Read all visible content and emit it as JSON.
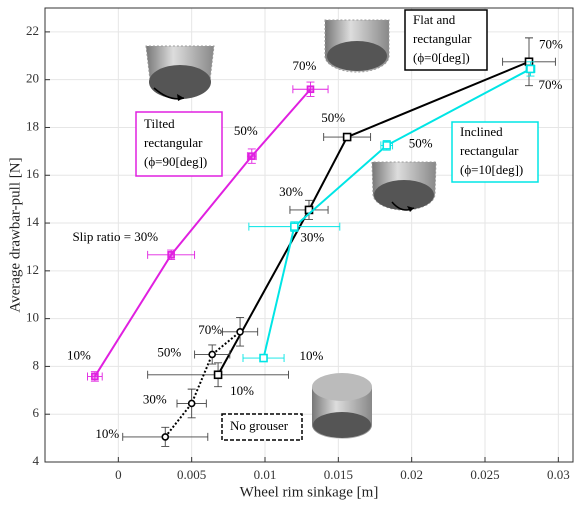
{
  "chart_data": {
    "type": "line",
    "x_label": "Wheel rim sinkage [m]",
    "y_label": "Average drawbar-pull [N]",
    "xlim": [
      -0.005,
      0.031
    ],
    "ylim": [
      4,
      23
    ],
    "xticks": [
      0,
      0.005,
      0.01,
      0.015,
      0.02,
      0.025,
      0.03
    ],
    "yticks": [
      4,
      6,
      8,
      10,
      12,
      14,
      16,
      18,
      20,
      22
    ],
    "grid": true,
    "series": [
      {
        "label_lines": [
          "Tilted",
          "rectangular",
          "(ϕ=90[deg])"
        ],
        "color": "#e020e0",
        "line_style": "solid",
        "marker": "square-filled",
        "x": [
          -0.0016,
          0.0036,
          0.0091,
          0.0131
        ],
        "values": [
          7.58,
          12.67,
          16.8,
          19.6
        ],
        "xerr": [
          0.0005,
          0.0016,
          0.0003,
          0.0012
        ],
        "yerr": [
          0.2,
          0.2,
          0.3,
          0.3
        ],
        "point_labels": [
          "10%",
          "Slip ratio = 30%",
          "50%",
          "70%"
        ]
      },
      {
        "label_lines": [
          "Flat and",
          "rectangular",
          "(ϕ=0[deg])"
        ],
        "color": "#000000",
        "line_style": "solid",
        "marker": "square",
        "x": [
          0.0068,
          0.013,
          0.0156,
          0.028
        ],
        "values": [
          7.65,
          14.55,
          17.6,
          20.75
        ],
        "xerr": [
          0.0048,
          0.0013,
          0.0016,
          0.0018
        ],
        "yerr": [
          0.5,
          0.4,
          0.1,
          1.0
        ],
        "point_labels": [
          "10%",
          "30%",
          "50%",
          "70%"
        ]
      },
      {
        "label_lines": [
          "Inclined",
          "rectangular",
          "(ϕ=10[deg])"
        ],
        "color": "#00e5e5",
        "line_style": "solid",
        "marker": "square",
        "x": [
          0.0099,
          0.012,
          0.0183,
          0.0281
        ],
        "values": [
          8.35,
          13.85,
          17.25,
          20.45
        ],
        "xerr": [
          0.0014,
          0.0031,
          0.0004,
          0.0003
        ],
        "yerr": [
          0.1,
          0.2,
          0.2,
          0.3
        ],
        "point_labels": [
          "10%",
          "30%",
          "50%",
          "70%"
        ]
      },
      {
        "label_lines": [
          "No grouser"
        ],
        "color": "#000000",
        "line_style": "dotted",
        "marker": "circle",
        "x": [
          0.0032,
          0.005,
          0.0064,
          0.0083
        ],
        "values": [
          5.05,
          6.45,
          8.5,
          9.45
        ],
        "xerr": [
          0.0029,
          0.001,
          0.0012,
          0.0012
        ],
        "yerr": [
          0.4,
          0.6,
          0.4,
          0.6
        ],
        "point_labels": [
          "10%",
          "30%",
          "50%",
          "70%"
        ]
      }
    ]
  }
}
